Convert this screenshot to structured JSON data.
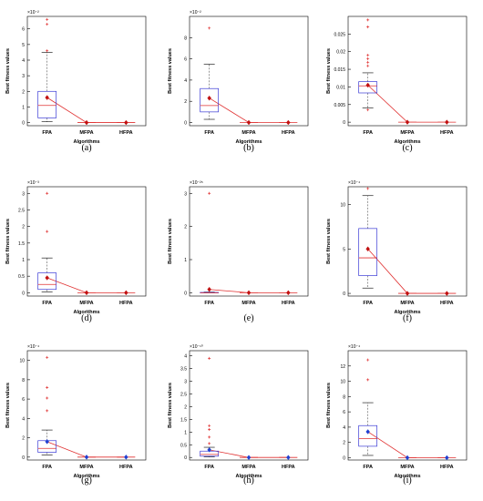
{
  "figure": {
    "colors": {
      "box": "#3b3bd6",
      "median": "#e03030",
      "outlier": "#e03030",
      "mean_line": "#e03030",
      "whisker": "#555555",
      "axis": "#000000"
    }
  },
  "chart_data": [
    {
      "label": "(a)",
      "type": "box",
      "xlabel": "Algorithms",
      "ylabel": "Best fitness values",
      "exponent": "×10⁻²",
      "categories": [
        "FPA",
        "MFPA",
        "HFPA"
      ],
      "ylim": [
        -0.2,
        6.8
      ],
      "yticks": [
        0,
        1,
        2,
        3,
        4,
        5,
        6
      ],
      "boxes": [
        {
          "min": 0.05,
          "q1": 0.3,
          "median": 1.1,
          "q3": 2.0,
          "max": 4.5,
          "mean": 1.6,
          "outliers": [
            4.6,
            6.3,
            6.6
          ]
        },
        {
          "min": 0,
          "q1": 0,
          "median": 0,
          "q3": 0,
          "max": 0,
          "mean": 0,
          "outliers": []
        },
        {
          "min": 0,
          "q1": 0,
          "median": 0,
          "q3": 0,
          "max": 0,
          "mean": 0,
          "outliers": []
        }
      ],
      "mean_marker": "red"
    },
    {
      "label": "(b)",
      "type": "box",
      "xlabel": "Algorithms",
      "ylabel": "Best fitness values",
      "exponent": "×10⁻²",
      "categories": [
        "FPA",
        "MFPA",
        "HFPA"
      ],
      "ylim": [
        -0.3,
        10
      ],
      "yticks": [
        0,
        2,
        4,
        6,
        8
      ],
      "boxes": [
        {
          "min": 0.3,
          "q1": 1.0,
          "median": 1.6,
          "q3": 3.2,
          "max": 5.5,
          "mean": 2.3,
          "outliers": [
            8.9
          ]
        },
        {
          "min": 0,
          "q1": 0,
          "median": 0,
          "q3": 0,
          "max": 0,
          "mean": 0,
          "outliers": []
        },
        {
          "min": 0,
          "q1": 0,
          "median": 0,
          "q3": 0,
          "max": 0,
          "mean": 0,
          "outliers": []
        }
      ],
      "mean_marker": "red"
    },
    {
      "label": "(c)",
      "type": "box",
      "xlabel": "Algorithms",
      "ylabel": "Best fitness values",
      "exponent": "",
      "categories": [
        "FPA",
        "MFPA",
        "HFPA"
      ],
      "ylim": [
        -0.001,
        0.03
      ],
      "yticks": [
        0,
        0.005,
        0.01,
        0.015,
        0.02,
        0.025
      ],
      "ytick_labels": [
        "0",
        "0.005",
        "0.01",
        "0.015",
        "0.02",
        "0.025"
      ],
      "boxes": [
        {
          "min": 0.004,
          "q1": 0.0083,
          "median": 0.0103,
          "q3": 0.0115,
          "max": 0.014,
          "mean": 0.0105,
          "outliers": [
            0.016,
            0.017,
            0.018,
            0.019,
            0.027,
            0.029,
            0.0035
          ]
        },
        {
          "min": 0,
          "q1": 0,
          "median": 0,
          "q3": 0,
          "max": 0,
          "mean": 0,
          "outliers": []
        },
        {
          "min": 0,
          "q1": 0,
          "median": 0,
          "q3": 0,
          "max": 0,
          "mean": 0,
          "outliers": []
        }
      ],
      "mean_marker": "red"
    },
    {
      "label": "(d)",
      "type": "box",
      "xlabel": "Algorithms",
      "ylabel": "Best fitness values",
      "exponent": "×10⁻³",
      "categories": [
        "FPA",
        "MFPA",
        "HFPA"
      ],
      "ylim": [
        -0.1,
        3.2
      ],
      "yticks": [
        0,
        0.5,
        1,
        1.5,
        2,
        2.5,
        3
      ],
      "boxes": [
        {
          "min": 0.02,
          "q1": 0.1,
          "median": 0.25,
          "q3": 0.6,
          "max": 1.05,
          "mean": 0.45,
          "outliers": [
            1.85,
            3.0
          ]
        },
        {
          "min": 0,
          "q1": 0,
          "median": 0,
          "q3": 0,
          "max": 0,
          "mean": 0,
          "outliers": []
        },
        {
          "min": 0,
          "q1": 0,
          "median": 0,
          "q3": 0,
          "max": 0,
          "mean": 0,
          "outliers": []
        }
      ],
      "mean_marker": "red"
    },
    {
      "label": "(e)",
      "type": "box",
      "xlabel": "",
      "ylabel": "Best fitness values",
      "exponent": "×10⁻²⁵",
      "categories": [
        "FPA",
        "MFPA",
        "HFPA"
      ],
      "ylim": [
        -0.1,
        3.2
      ],
      "yticks": [
        0,
        1,
        2,
        3
      ],
      "boxes": [
        {
          "min": 0,
          "q1": 0,
          "median": 0,
          "q3": 0.01,
          "max": 0.02,
          "mean": 0.1,
          "outliers": [
            3.0
          ]
        },
        {
          "min": 0,
          "q1": 0,
          "median": 0,
          "q3": 0,
          "max": 0,
          "mean": 0,
          "outliers": []
        },
        {
          "min": 0,
          "q1": 0,
          "median": 0,
          "q3": 0,
          "max": 0,
          "mean": 0,
          "outliers": []
        }
      ],
      "mean_marker": "red"
    },
    {
      "label": "(f)",
      "type": "box",
      "xlabel": "Algorithms",
      "ylabel": "Best fitness values",
      "exponent": "×10⁻⁴",
      "categories": [
        "FPA",
        "MFPA",
        "HFPA"
      ],
      "ylim": [
        -0.3,
        12
      ],
      "yticks": [
        0,
        5,
        10
      ],
      "boxes": [
        {
          "min": 0.6,
          "q1": 2.0,
          "median": 4.0,
          "q3": 7.3,
          "max": 11.0,
          "mean": 5.0,
          "outliers": [
            11.8
          ]
        },
        {
          "min": 0,
          "q1": 0,
          "median": 0,
          "q3": 0,
          "max": 0,
          "mean": 0,
          "outliers": []
        },
        {
          "min": 0,
          "q1": 0,
          "median": 0,
          "q3": 0,
          "max": 0,
          "mean": 0,
          "outliers": []
        }
      ],
      "mean_marker": "red"
    },
    {
      "label": "(g)",
      "type": "box",
      "xlabel": "Algorithms",
      "ylabel": "Best fitness values",
      "exponent": "×10⁻⁴",
      "categories": [
        "FPA",
        "MFPA",
        "HFPA"
      ],
      "ylim": [
        -0.3,
        11
      ],
      "yticks": [
        0,
        2,
        4,
        6,
        8,
        10
      ],
      "boxes": [
        {
          "min": 0.2,
          "q1": 0.5,
          "median": 0.9,
          "q3": 1.7,
          "max": 2.8,
          "mean": 1.6,
          "outliers": [
            4.8,
            6.1,
            7.2,
            10.3
          ]
        },
        {
          "min": 0,
          "q1": 0,
          "median": 0,
          "q3": 0,
          "max": 0,
          "mean": 0,
          "outliers": []
        },
        {
          "min": 0,
          "q1": 0,
          "median": 0,
          "q3": 0,
          "max": 0,
          "mean": 0,
          "outliers": []
        }
      ],
      "mean_marker": "blue"
    },
    {
      "label": "(h)",
      "type": "box",
      "xlabel": "Algorithms",
      "ylabel": "Best fitness values",
      "exponent": "×10⁻¹⁰",
      "categories": [
        "FPA",
        "MFPA",
        "HFPA"
      ],
      "ylim": [
        -0.1,
        4.2
      ],
      "yticks": [
        0,
        0.5,
        1,
        1.5,
        2,
        2.5,
        3,
        3.5,
        4
      ],
      "boxes": [
        {
          "min": 0.02,
          "q1": 0.05,
          "median": 0.12,
          "q3": 0.25,
          "max": 0.4,
          "mean": 0.3,
          "outliers": [
            0.55,
            0.8,
            1.1,
            1.25,
            3.9
          ]
        },
        {
          "min": 0,
          "q1": 0,
          "median": 0,
          "q3": 0,
          "max": 0,
          "mean": 0,
          "outliers": []
        },
        {
          "min": 0,
          "q1": 0,
          "median": 0,
          "q3": 0,
          "max": 0,
          "mean": 0,
          "outliers": []
        }
      ],
      "mean_marker": "blue"
    },
    {
      "label": "(i)",
      "type": "box",
      "xlabel": "Algorithms",
      "ylabel": "Best fitness values",
      "exponent": "×10⁻⁴",
      "categories": [
        "FPA",
        "MFPA",
        "HFPA"
      ],
      "ylim": [
        -0.3,
        14
      ],
      "yticks": [
        0,
        2,
        4,
        6,
        8,
        10,
        12
      ],
      "boxes": [
        {
          "min": 0.3,
          "q1": 1.5,
          "median": 2.5,
          "q3": 4.2,
          "max": 7.2,
          "mean": 3.4,
          "outliers": [
            10.2,
            12.8
          ]
        },
        {
          "min": 0,
          "q1": 0,
          "median": 0,
          "q3": 0,
          "max": 0,
          "mean": 0,
          "outliers": []
        },
        {
          "min": 0,
          "q1": 0,
          "median": 0,
          "q3": 0,
          "max": 0,
          "mean": 0,
          "outliers": []
        }
      ],
      "mean_marker": "blue"
    }
  ]
}
